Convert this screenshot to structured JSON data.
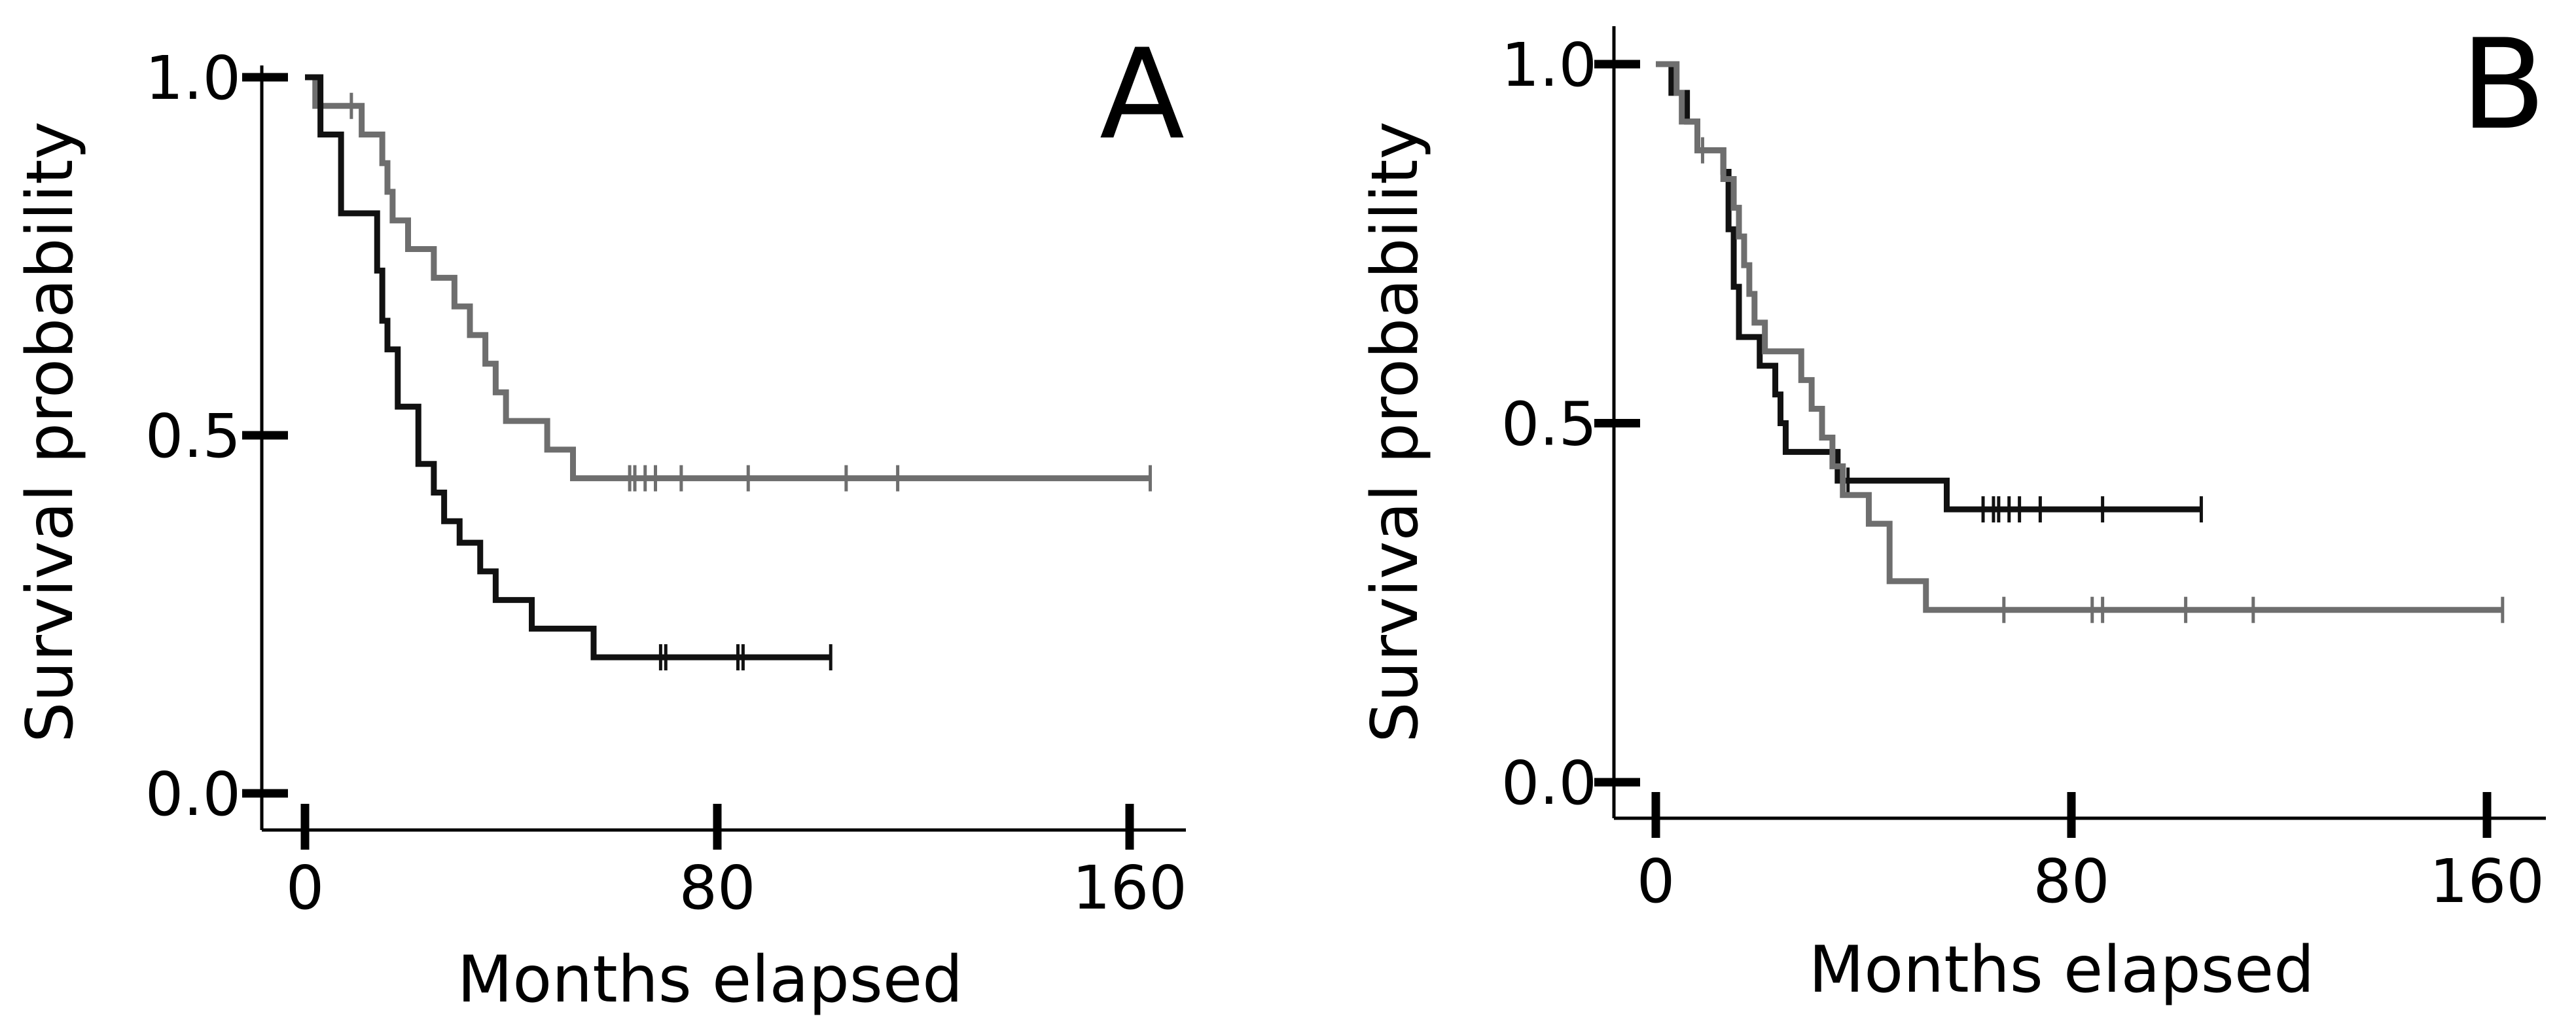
{
  "chart_data": [
    {
      "type": "line",
      "subtype": "kaplan-meier",
      "panel_label": "A",
      "title": "",
      "xlabel": "Months elapsed",
      "ylabel": "Survival probability",
      "xlim": [
        -8,
        172
      ],
      "ylim": [
        -0.05,
        1.05
      ],
      "xticks": [
        0,
        80,
        160
      ],
      "xtick_labels": [
        "0",
        "80",
        "160"
      ],
      "yticks": [
        0.0,
        0.5,
        1.0
      ],
      "ytick_labels": [
        "0.0",
        "0.5",
        "1.0"
      ],
      "grid": false,
      "legend": "none",
      "series": [
        {
          "color": "#6e6e6e",
          "steps": [
            [
              0,
              1.0
            ],
            [
              2,
              0.96
            ],
            [
              11,
              0.92
            ],
            [
              15,
              0.88
            ],
            [
              16,
              0.84
            ],
            [
              17,
              0.8
            ],
            [
              20,
              0.76
            ],
            [
              25,
              0.72
            ],
            [
              29,
              0.68
            ],
            [
              32,
              0.64
            ],
            [
              35,
              0.6
            ],
            [
              37,
              0.56
            ],
            [
              39,
              0.52
            ],
            [
              47,
              0.48
            ],
            [
              52,
              0.44
            ],
            [
              164,
              0.44
            ]
          ],
          "censored_x": [
            9,
            63,
            64,
            66,
            68,
            73,
            86,
            105,
            115,
            164
          ]
        },
        {
          "color": "#111111",
          "steps": [
            [
              0,
              1.0
            ],
            [
              3,
              0.92
            ],
            [
              7,
              0.81
            ],
            [
              14,
              0.73
            ],
            [
              15,
              0.66
            ],
            [
              16,
              0.62
            ],
            [
              18,
              0.54
            ],
            [
              22,
              0.46
            ],
            [
              25,
              0.42
            ],
            [
              27,
              0.38
            ],
            [
              30,
              0.35
            ],
            [
              34,
              0.31
            ],
            [
              37,
              0.27
            ],
            [
              44,
              0.23
            ],
            [
              56,
              0.19
            ],
            [
              102,
              0.19
            ]
          ],
          "censored_x": [
            69,
            70,
            84,
            85,
            102
          ]
        }
      ]
    },
    {
      "type": "line",
      "subtype": "kaplan-meier",
      "panel_label": "B",
      "title": "",
      "xlabel": "Months elapsed",
      "ylabel": "Survival probability",
      "xlim": [
        -8,
        172
      ],
      "ylim": [
        -0.05,
        1.05
      ],
      "xticks": [
        0,
        80,
        160
      ],
      "xtick_labels": [
        "0",
        "80",
        "160"
      ],
      "yticks": [
        0.0,
        0.5,
        1.0
      ],
      "ytick_labels": [
        "0.0",
        "0.5",
        "1.0"
      ],
      "grid": false,
      "legend": "none",
      "series": [
        {
          "color": "#111111",
          "steps": [
            [
              0,
              1.0
            ],
            [
              3,
              0.96
            ],
            [
              6,
              0.92
            ],
            [
              8,
              0.88
            ],
            [
              13,
              0.85
            ],
            [
              14,
              0.77
            ],
            [
              15,
              0.69
            ],
            [
              16,
              0.62
            ],
            [
              20,
              0.58
            ],
            [
              23,
              0.54
            ],
            [
              24,
              0.5
            ],
            [
              25,
              0.46
            ],
            [
              33,
              0.46
            ],
            [
              35,
              0.42
            ],
            [
              56,
              0.38
            ],
            [
              105,
              0.38
            ]
          ],
          "censored_x": [
            37,
            63,
            65,
            66,
            68,
            70,
            74,
            86,
            105
          ]
        },
        {
          "color": "#6e6e6e",
          "steps": [
            [
              0,
              1.0
            ],
            [
              4,
              0.96
            ],
            [
              5,
              0.92
            ],
            [
              8,
              0.88
            ],
            [
              13,
              0.84
            ],
            [
              15,
              0.8
            ],
            [
              16,
              0.76
            ],
            [
              17,
              0.72
            ],
            [
              18,
              0.68
            ],
            [
              19,
              0.64
            ],
            [
              21,
              0.6
            ],
            [
              28,
              0.56
            ],
            [
              30,
              0.52
            ],
            [
              32,
              0.48
            ],
            [
              34,
              0.44
            ],
            [
              36,
              0.4
            ],
            [
              41,
              0.36
            ],
            [
              45,
              0.28
            ],
            [
              52,
              0.24
            ],
            [
              163,
              0.24
            ]
          ],
          "censored_x": [
            9,
            67,
            84,
            86,
            102,
            115,
            163
          ]
        }
      ]
    }
  ]
}
